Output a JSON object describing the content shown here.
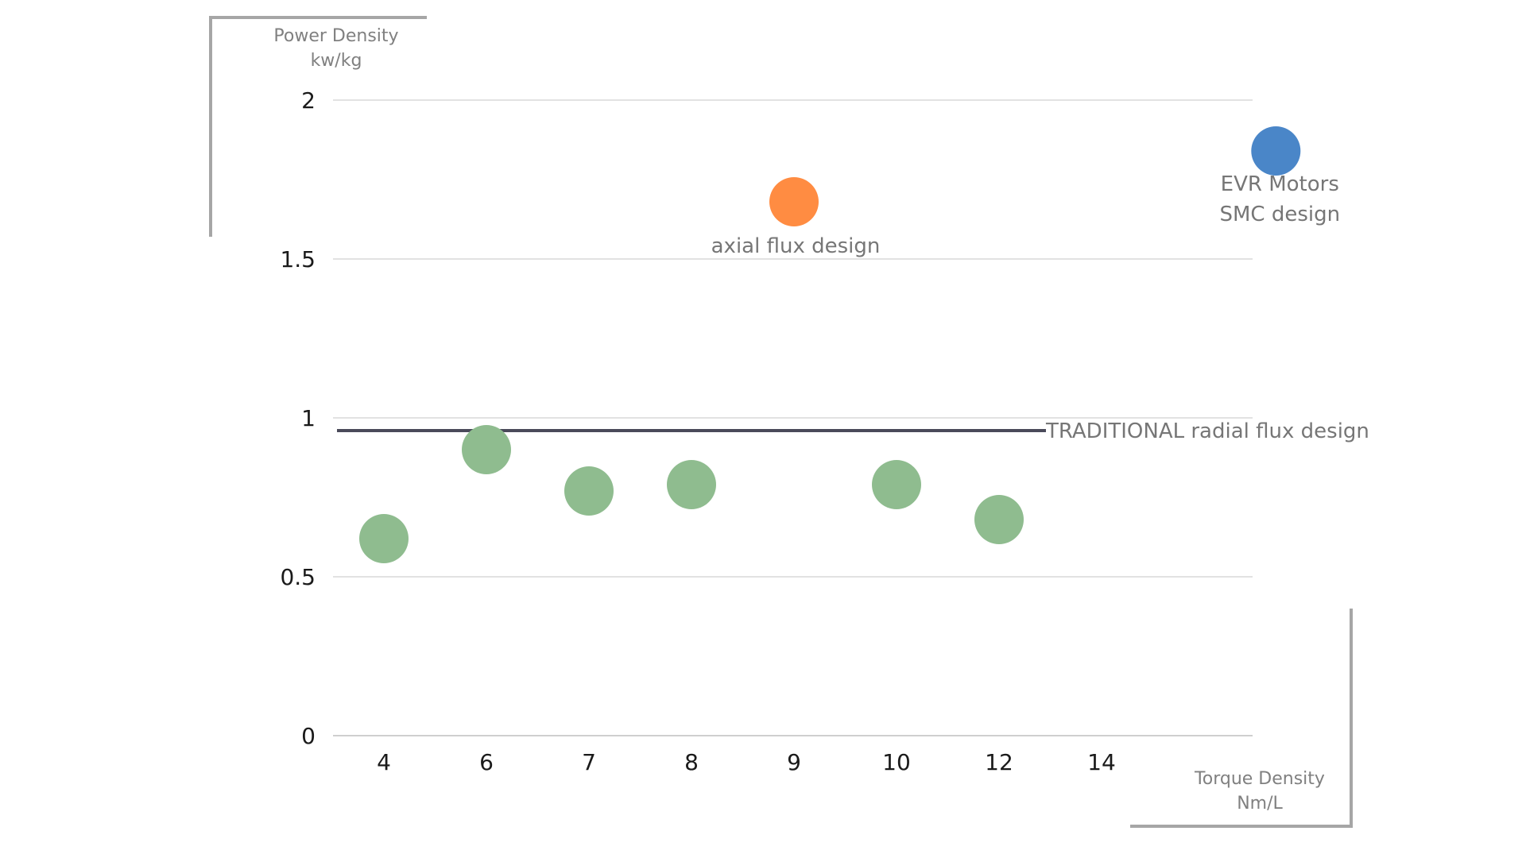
{
  "chart_data": {
    "type": "scatter",
    "categories": [
      "4",
      "6",
      "7",
      "8",
      "9",
      "10",
      "12",
      "14"
    ],
    "y_ticks": [
      "0",
      "0.5",
      "1",
      "1.5",
      "2"
    ],
    "ylim": [
      0,
      2
    ],
    "grid": true,
    "ylabel": [
      "Power Density",
      "kw/kg"
    ],
    "xlabel": [
      "Torque Density",
      "Nm/L"
    ],
    "series": [
      {
        "color": "#8fbc8f",
        "points": [
          {
            "x": "4",
            "y": 0.62
          },
          {
            "x": "6",
            "y": 0.9
          },
          {
            "x": "7",
            "y": 0.77
          },
          {
            "x": "8",
            "y": 0.79
          },
          {
            "x": "10",
            "y": 0.79
          },
          {
            "x": "12",
            "y": 0.68
          }
        ]
      },
      {
        "color": "#ff8c42",
        "points": [
          {
            "x": "9",
            "y": 1.68
          }
        ]
      },
      {
        "color": "#4a86c8",
        "points": [
          {
            "x": "beyond-14",
            "y": 1.84
          }
        ]
      }
    ],
    "reference_line": {
      "y": 0.96,
      "label": "TRADITIONAL radial flux design",
      "color": "#4a4a5a"
    },
    "annotations": [
      {
        "text": "axial flux design",
        "series": 1
      },
      {
        "text": "EVR Motors",
        "series": 2
      },
      {
        "text": "SMC design",
        "series": 2
      }
    ]
  }
}
